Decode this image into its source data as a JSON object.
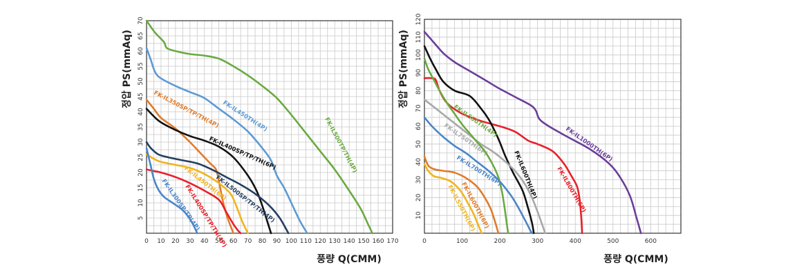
{
  "chart_data": [
    {
      "type": "line",
      "xlabel": "풍량 Q(CMM)",
      "ylabel": "정압 PS(mmAq)",
      "xlim": [
        0,
        170
      ],
      "ylim": [
        0,
        70
      ],
      "xticks": [
        0,
        10,
        20,
        30,
        40,
        50,
        60,
        70,
        80,
        90,
        100,
        110,
        120,
        130,
        140,
        150,
        160,
        170
      ],
      "yticks": [
        5,
        10,
        15,
        20,
        25,
        30,
        35,
        40,
        45,
        50,
        55,
        60,
        65,
        70
      ],
      "xgrid_step": 5,
      "ygrid_step": 2.5,
      "grid": true,
      "series": [
        {
          "name": "FK-IL500TP/TH(4P)",
          "color": "#6aaa40",
          "x": [
            0,
            6,
            12,
            14,
            20,
            30,
            40,
            50,
            60,
            70,
            80,
            90,
            100,
            110,
            120,
            130,
            140,
            148,
            153,
            156
          ],
          "y": [
            70,
            66,
            63,
            61,
            60,
            59,
            58.5,
            57.5,
            55,
            52,
            48.5,
            44.5,
            39,
            33,
            27,
            21,
            14,
            8,
            3,
            0
          ]
        },
        {
          "name": "FK-IL450TH(4P)",
          "color": "#5b9bd5",
          "x": [
            0,
            3,
            6,
            10,
            20,
            30,
            40,
            50,
            60,
            70,
            80,
            86,
            90,
            95,
            100,
            106,
            111
          ],
          "y": [
            61,
            57,
            53,
            51,
            48.5,
            46.5,
            44.5,
            41,
            37.5,
            33.5,
            28,
            24,
            19,
            15,
            10,
            4,
            0
          ]
        },
        {
          "name": "FK-IL350SP/TP/TH(4P)",
          "color": "#e07b2a",
          "x": [
            0,
            5,
            10,
            20,
            30,
            38,
            44,
            48,
            50,
            53,
            56,
            60
          ],
          "y": [
            44,
            41,
            38,
            34.5,
            30,
            26,
            23,
            21,
            17,
            10,
            5,
            0
          ]
        },
        {
          "name": "FK-IL400SP/TP/TH(6P)",
          "color": "#111111",
          "x": [
            0,
            5,
            10,
            20,
            30,
            40,
            50,
            60,
            70,
            76,
            80,
            84,
            86
          ],
          "y": [
            41,
            38.5,
            36.5,
            34,
            32,
            30.5,
            28.5,
            25,
            19,
            14,
            9,
            3,
            0
          ]
        },
        {
          "name": "FK-IL500SP/TP/TH(4P)",
          "color": "#243f60",
          "x": [
            0,
            3,
            8,
            15,
            25,
            35,
            45,
            55,
            65,
            75,
            85,
            92,
            98
          ],
          "y": [
            30,
            28,
            26,
            25,
            24,
            23,
            21,
            18.5,
            16,
            13,
            9,
            5,
            0
          ]
        },
        {
          "name": "FK-IL450TH(6P)",
          "color": "#f0b41c",
          "x": [
            0,
            5,
            10,
            20,
            30,
            40,
            50,
            58,
            62,
            66,
            70
          ],
          "y": [
            26,
            24.5,
            23.5,
            22.5,
            21.5,
            19.5,
            16.5,
            13,
            9,
            4,
            0
          ]
        },
        {
          "name": "FK-IL400SP/TP/TH(4P)",
          "color": "#e8202a",
          "x": [
            0,
            5,
            10,
            20,
            30,
            40,
            50,
            55,
            60,
            63,
            65
          ],
          "y": [
            21,
            20.5,
            20,
            18.5,
            16.5,
            14,
            11,
            7,
            3,
            1,
            0
          ]
        },
        {
          "name": "FK-IL300SP/TP(4P)",
          "color": "#4a86c8",
          "x": [
            0,
            3,
            5,
            8,
            12,
            18,
            24,
            28,
            32,
            35
          ],
          "y": [
            28,
            22,
            18,
            14.5,
            12,
            10,
            8,
            6,
            3,
            0
          ]
        }
      ]
    },
    {
      "type": "line",
      "xlabel": "풍량 Q(CMM)",
      "ylabel": "정압 PS(mmAq)",
      "xlim": [
        0,
        680
      ],
      "ylim": [
        0,
        120
      ],
      "xticks": [
        0,
        100,
        200,
        300,
        400,
        500,
        600
      ],
      "yticks": [
        10,
        20,
        30,
        40,
        50,
        60,
        70,
        80,
        90,
        100,
        110,
        120
      ],
      "xgrid_step": 20,
      "ygrid_step": 5,
      "grid": true,
      "series": [
        {
          "name": "FK-IL1000TH(6P)",
          "color": "#6a3d9a",
          "x": [
            0,
            25,
            50,
            80,
            120,
            160,
            200,
            240,
            280,
            295,
            305,
            330,
            380,
            440,
            490,
            520,
            545,
            562,
            574
          ],
          "y": [
            113,
            107,
            101,
            96,
            91,
            86,
            81,
            76.5,
            72,
            69,
            64,
            60,
            54,
            47,
            39,
            31,
            21,
            9,
            0
          ]
        },
        {
          "name": "FK-IL800TH(6P)",
          "color": "#e8202a",
          "x": [
            0,
            20,
            30,
            40,
            60,
            100,
            150,
            200,
            240,
            275,
            300,
            340,
            370,
            390,
            405,
            412,
            416,
            418
          ],
          "y": [
            87,
            87,
            86,
            80,
            73,
            67,
            63,
            60,
            57,
            52,
            50,
            46,
            39,
            32,
            26,
            18,
            8,
            0
          ]
        },
        {
          "name": "FK-IL600TH(4P)",
          "color": "#111111",
          "x": [
            0,
            15,
            30,
            50,
            80,
            120,
            150,
            170,
            185,
            200,
            215,
            235,
            260,
            275,
            285,
            290
          ],
          "y": [
            105,
            98,
            92,
            85,
            80,
            77,
            70,
            64,
            58,
            51,
            43,
            34,
            24,
            14,
            6,
            0
          ]
        },
        {
          "name": "FK-IL750TH(6P)",
          "color": "#a8a8a8",
          "x": [
            0,
            30,
            60,
            90,
            120,
            150,
            180,
            210,
            240,
            265,
            285,
            300,
            312,
            320
          ],
          "y": [
            75,
            70,
            65,
            60,
            55,
            50,
            46,
            41,
            35,
            28,
            20,
            12,
            5,
            0
          ]
        },
        {
          "name": "FK-IL550TH(4P)",
          "color": "#6aaa40",
          "x": [
            0,
            10,
            25,
            40,
            60,
            80,
            100,
            120,
            140,
            160,
            180,
            195,
            205,
            212,
            218,
            222
          ],
          "y": [
            98,
            92,
            86,
            80,
            73,
            67,
            61,
            56,
            51,
            46,
            39,
            32,
            24,
            15,
            6,
            0
          ]
        },
        {
          "name": "FK-IL700TH(6P)",
          "color": "#4a86c8",
          "x": [
            0,
            20,
            50,
            80,
            110,
            140,
            170,
            200,
            230,
            250,
            265,
            275,
            282,
            286
          ],
          "y": [
            65,
            60,
            54,
            49,
            45,
            40,
            35,
            29,
            21,
            14,
            8,
            4,
            1,
            0
          ]
        },
        {
          "name": "FK-IL600TH(6P)",
          "color": "#e07b2a",
          "x": [
            0,
            10,
            25,
            50,
            80,
            110,
            140,
            160,
            175,
            185,
            192,
            196
          ],
          "y": [
            43,
            38,
            36,
            35,
            34,
            31,
            26,
            20,
            14,
            8,
            3,
            0
          ]
        },
        {
          "name": "FK-IL550TH(6P)",
          "color": "#f0b41c",
          "x": [
            0,
            10,
            25,
            45,
            70,
            95,
            115,
            130,
            140,
            148,
            152
          ],
          "y": [
            39,
            35,
            32,
            31,
            29,
            24,
            17,
            11,
            6,
            2,
            0
          ]
        }
      ]
    }
  ]
}
